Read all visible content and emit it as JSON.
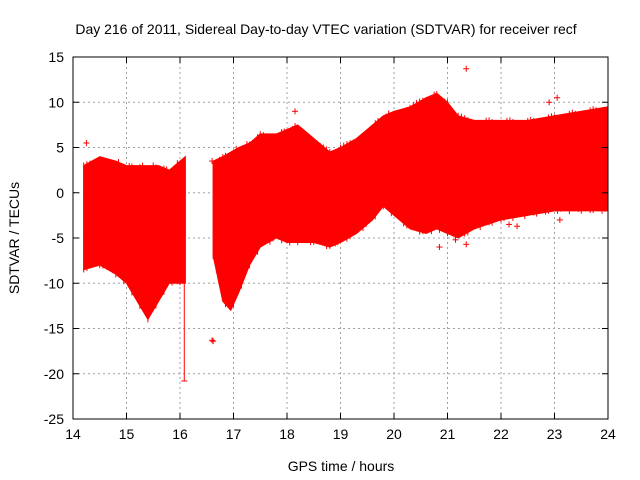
{
  "chart_data": {
    "type": "scatter",
    "title": "Day 216 of 2011, Sidereal Day-to-day VTEC variation (SDTVAR) for receiver recf",
    "xlabel": "GPS time / hours",
    "ylabel": "SDTVAR / TECUs",
    "xlim": [
      14,
      24
    ],
    "ylim": [
      -25,
      15
    ],
    "xticks": [
      14,
      15,
      16,
      17,
      18,
      19,
      20,
      21,
      22,
      23,
      24
    ],
    "yticks": [
      -25,
      -20,
      -15,
      -10,
      -5,
      0,
      5,
      10,
      15
    ],
    "grid": true,
    "color": "#ff0000",
    "envelope": [
      {
        "x": 14.2,
        "upper": 3.0,
        "lower": -8.5
      },
      {
        "x": 14.5,
        "upper": 4.0,
        "lower": -8.0
      },
      {
        "x": 14.8,
        "upper": 3.5,
        "lower": -9.0
      },
      {
        "x": 15.0,
        "upper": 3.0,
        "lower": -10.0
      },
      {
        "x": 15.2,
        "upper": 3.0,
        "lower": -12.0
      },
      {
        "x": 15.4,
        "upper": 3.0,
        "lower": -14.0
      },
      {
        "x": 15.6,
        "upper": 3.0,
        "lower": -12.0
      },
      {
        "x": 15.8,
        "upper": 2.5,
        "lower": -10.0
      },
      {
        "x": 16.0,
        "upper": 3.5,
        "lower": -10.0
      },
      {
        "x": 16.1,
        "upper": 4.0,
        "lower": -10.0
      },
      {
        "x": 16.62,
        "upper": 3.5,
        "lower": -7.0
      },
      {
        "x": 16.8,
        "upper": 4.0,
        "lower": -12.0
      },
      {
        "x": 16.95,
        "upper": 4.5,
        "lower": -13.0
      },
      {
        "x": 17.1,
        "upper": 5.0,
        "lower": -11.0
      },
      {
        "x": 17.3,
        "upper": 5.5,
        "lower": -8.0
      },
      {
        "x": 17.5,
        "upper": 6.5,
        "lower": -6.0
      },
      {
        "x": 17.8,
        "upper": 6.5,
        "lower": -5.0
      },
      {
        "x": 18.0,
        "upper": 7.0,
        "lower": -5.5
      },
      {
        "x": 18.2,
        "upper": 7.5,
        "lower": -5.5
      },
      {
        "x": 18.5,
        "upper": 6.0,
        "lower": -5.5
      },
      {
        "x": 18.8,
        "upper": 4.5,
        "lower": -6.0
      },
      {
        "x": 19.0,
        "upper": 5.0,
        "lower": -5.5
      },
      {
        "x": 19.3,
        "upper": 6.0,
        "lower": -4.5
      },
      {
        "x": 19.6,
        "upper": 7.5,
        "lower": -3.0
      },
      {
        "x": 19.8,
        "upper": 8.5,
        "lower": -1.5
      },
      {
        "x": 20.0,
        "upper": 9.0,
        "lower": -2.5
      },
      {
        "x": 20.3,
        "upper": 9.5,
        "lower": -4.0
      },
      {
        "x": 20.6,
        "upper": 10.5,
        "lower": -4.5
      },
      {
        "x": 20.8,
        "upper": 11.0,
        "lower": -4.0
      },
      {
        "x": 21.0,
        "upper": 10.0,
        "lower": -4.5
      },
      {
        "x": 21.2,
        "upper": 8.5,
        "lower": -5.0
      },
      {
        "x": 21.5,
        "upper": 8.0,
        "lower": -4.0
      },
      {
        "x": 22.0,
        "upper": 8.0,
        "lower": -3.0
      },
      {
        "x": 22.5,
        "upper": 8.0,
        "lower": -2.5
      },
      {
        "x": 23.0,
        "upper": 8.5,
        "lower": -2.0
      },
      {
        "x": 23.5,
        "upper": 9.0,
        "lower": -2.0
      },
      {
        "x": 24.0,
        "upper": 9.5,
        "lower": -2.0
      }
    ],
    "data_gaps": [
      [
        16.1,
        16.62
      ]
    ],
    "points": [
      {
        "x": 16.6,
        "y": -16.3
      },
      {
        "x": 16.62,
        "y": -16.4
      },
      {
        "x": 21.35,
        "y": 13.7
      },
      {
        "x": 18.15,
        "y": 9.0
      },
      {
        "x": 23.05,
        "y": 10.5
      },
      {
        "x": 22.9,
        "y": 10.0
      },
      {
        "x": 14.25,
        "y": 5.5
      },
      {
        "x": 16.6,
        "y": 3.5
      },
      {
        "x": 20.85,
        "y": -6.0
      },
      {
        "x": 21.35,
        "y": -5.7
      },
      {
        "x": 21.15,
        "y": -5.2
      },
      {
        "x": 22.15,
        "y": -3.5
      },
      {
        "x": 22.3,
        "y": -3.7
      },
      {
        "x": 23.1,
        "y": -3.0
      }
    ],
    "error_bars": [
      {
        "x": 16.08,
        "low": -20.8,
        "high": -10.0
      }
    ]
  }
}
